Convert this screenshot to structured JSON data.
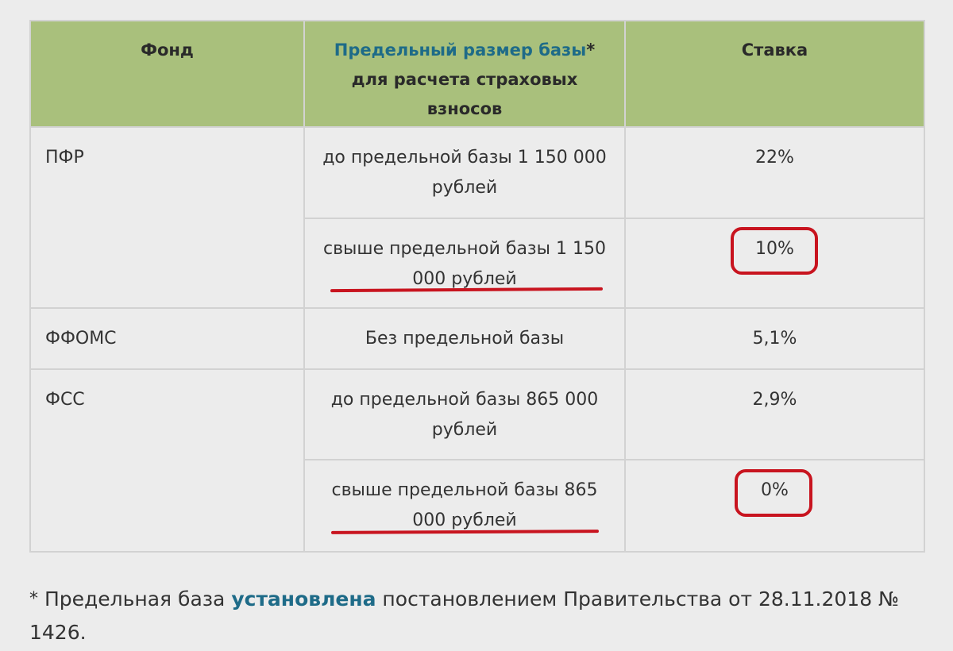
{
  "table": {
    "headers": {
      "fund": "Фонд",
      "base_highlight": "Предельный размер базы",
      "base_rest": "* для расчета страховых взносов",
      "rate": "Ставка"
    },
    "rows": [
      {
        "fund": "ПФР",
        "base": "до предельной базы 1 150 000 рублей",
        "rate": "22%"
      },
      {
        "fund": "",
        "base": "свыше предельной базы 1 150 000 рублей",
        "rate": "10%"
      },
      {
        "fund": "ФФОМС",
        "base": "Без предельной базы",
        "rate": "5,1%"
      },
      {
        "fund": "ФСС",
        "base": "до предельной базы 865 000 рублей",
        "rate": "2,9%"
      },
      {
        "fund": "",
        "base": "свыше предельной базы 865 000 рублей",
        "rate": "0%"
      }
    ]
  },
  "footnote": {
    "star": "*",
    "text_before": " Предельная база ",
    "link": "установлена",
    "text_after": " постановлением Правительства от 28.11.2018 № 1426."
  },
  "colors": {
    "header_bg": "#a9c07c",
    "link": "#1e6b88",
    "annotation": "#c8141f"
  }
}
